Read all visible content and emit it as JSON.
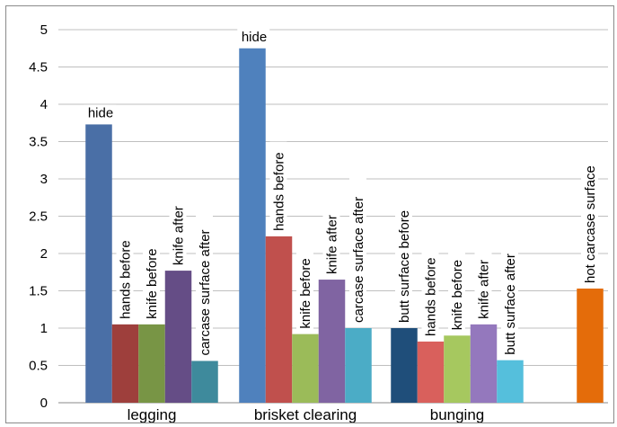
{
  "chart_data": {
    "type": "bar",
    "title": "",
    "xlabel": "",
    "ylabel": "",
    "ylim": [
      0,
      5
    ],
    "yticks": [
      "0",
      "0.5",
      "1",
      "1.5",
      "2",
      "2.5",
      "3",
      "3.5",
      "4",
      "4.5",
      "5"
    ],
    "grid": true,
    "legend": "none",
    "groups": [
      {
        "category": "legging",
        "bars": [
          {
            "label": "hide",
            "value": 3.73,
            "color": "#4a6fa6"
          },
          {
            "label": "hands before",
            "value": 1.05,
            "color": "#9e3f3c"
          },
          {
            "label": "knife before",
            "value": 1.05,
            "color": "#789545"
          },
          {
            "label": "knife after",
            "value": 1.77,
            "color": "#654d86"
          },
          {
            "label": "carcase surface after",
            "value": 0.56,
            "color": "#3e8a9c"
          }
        ]
      },
      {
        "category": "brisket clearing",
        "bars": [
          {
            "label": "hide",
            "value": 4.75,
            "color": "#4f81bd"
          },
          {
            "label": "hands before",
            "value": 2.23,
            "color": "#c0504d"
          },
          {
            "label": "knife before",
            "value": 0.92,
            "color": "#9bbb59"
          },
          {
            "label": "knife after",
            "value": 1.65,
            "color": "#8064a2"
          },
          {
            "label": "carcase surface after",
            "value": 1.0,
            "color": "#4bacc6"
          }
        ]
      },
      {
        "category": "bunging",
        "bars": [
          {
            "label": "butt surface before",
            "value": 1.0,
            "color": "#1f4e7a"
          },
          {
            "label": "hands before",
            "value": 0.82,
            "color": "#d9605c"
          },
          {
            "label": "knife before",
            "value": 0.9,
            "color": "#a6c85f"
          },
          {
            "label": "knife after",
            "value": 1.05,
            "color": "#9478bd"
          },
          {
            "label": "butt surface after",
            "value": 0.57,
            "color": "#55bfdc"
          }
        ]
      },
      {
        "category": "",
        "bars": [
          {
            "label": "hot carcase surface",
            "value": 1.53,
            "color": "#e46c0a"
          }
        ]
      }
    ]
  }
}
